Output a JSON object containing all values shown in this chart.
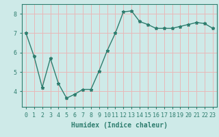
{
  "x": [
    0,
    1,
    2,
    3,
    4,
    5,
    6,
    7,
    8,
    9,
    10,
    11,
    12,
    13,
    14,
    15,
    16,
    17,
    18,
    19,
    20,
    21,
    22,
    23
  ],
  "y": [
    7.0,
    5.8,
    4.2,
    5.7,
    4.4,
    3.65,
    3.85,
    4.1,
    4.1,
    5.05,
    6.1,
    7.0,
    8.1,
    8.15,
    7.6,
    7.45,
    7.25,
    7.25,
    7.25,
    7.35,
    7.45,
    7.55,
    7.5,
    7.25
  ],
  "line_color": "#2e7d6e",
  "marker": "*",
  "marker_size": 3.5,
  "bg_color": "#ceeae8",
  "grid_color": "#e8b8b8",
  "xlabel": "Humidex (Indice chaleur)",
  "xlim": [
    -0.5,
    23.5
  ],
  "ylim": [
    3.2,
    8.5
  ],
  "yticks": [
    4,
    5,
    6,
    7,
    8
  ],
  "xtick_labels": [
    "0",
    "1",
    "2",
    "3",
    "4",
    "5",
    "6",
    "7",
    "8",
    "9",
    "10",
    "11",
    "12",
    "13",
    "14",
    "15",
    "16",
    "17",
    "18",
    "19",
    "20",
    "21",
    "22",
    "23"
  ],
  "label_fontsize": 7,
  "tick_fontsize": 6,
  "fig_width": 3.2,
  "fig_height": 2.0,
  "dpi": 100
}
